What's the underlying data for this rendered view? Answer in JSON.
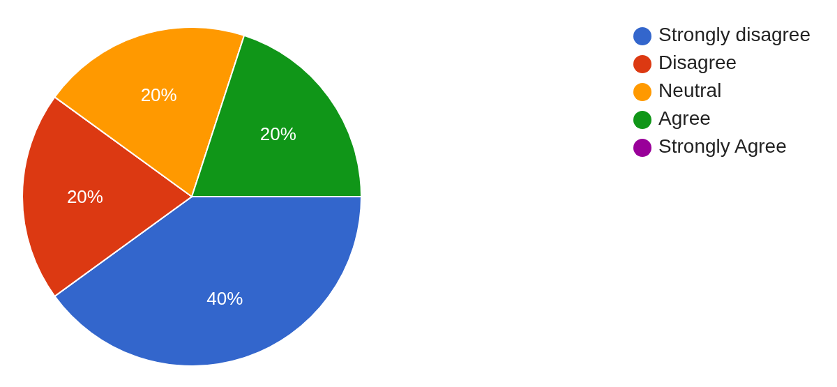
{
  "chart_data": {
    "type": "pie",
    "categories": [
      "Strongly disagree",
      "Disagree",
      "Neutral",
      "Agree",
      "Strongly Agree"
    ],
    "values": [
      40,
      20,
      20,
      20,
      0
    ],
    "colors": [
      "#3366cc",
      "#dc3912",
      "#ff9900",
      "#109618",
      "#990099"
    ],
    "value_labels": [
      "40%",
      "20%",
      "20%",
      "20%",
      null
    ],
    "legend": "top right"
  }
}
